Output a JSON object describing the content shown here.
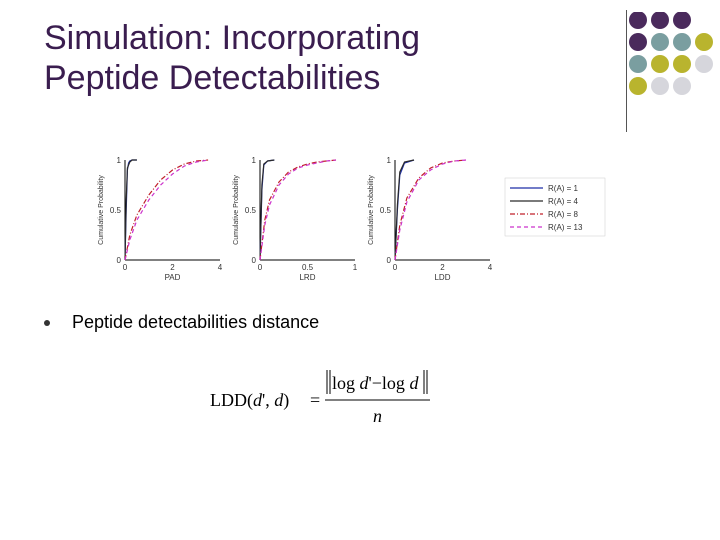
{
  "slide": {
    "title_line1": "Simulation: Incorporating",
    "title_line2": "Peptide Detectabilities",
    "bullet": "Peptide detectabilities distance"
  },
  "colors": {
    "title": "#3a1d4f",
    "purple": "#4a2a5c",
    "teal": "#7a9ea0",
    "olive": "#b9b42e",
    "lightgray": "#d6d6dc"
  },
  "dot_grid": [
    [
      "purple",
      "purple",
      "purple",
      "none"
    ],
    [
      "purple",
      "teal",
      "teal",
      "olive"
    ],
    [
      "teal",
      "olive",
      "olive",
      "lightgray"
    ],
    [
      "olive",
      "lightgray",
      "lightgray",
      "none"
    ]
  ],
  "formula": {
    "lhs": "LDD(",
    "arg1": "d",
    "prime": "'",
    "comma": ", ",
    "arg2": "d",
    "close": ")",
    "equals": "=",
    "num_log1": "log ",
    "num_d1": "d",
    "num_prime": "'",
    "num_minus": "−",
    "num_log2": "log ",
    "num_d2": "d",
    "den": "n"
  },
  "chart_data": [
    {
      "type": "line",
      "xlabel": "PAD",
      "ylabel": "Cumulative Probability",
      "xlim": [
        0,
        4
      ],
      "ylim": [
        0,
        1
      ],
      "x_ticks": [
        "0",
        "2",
        "4"
      ],
      "y_ticks": [
        "0",
        "0.5",
        "1"
      ],
      "series": [
        {
          "name": "R(A) = 1",
          "x": [
            0,
            0.05,
            0.1,
            0.15,
            0.2,
            0.3,
            0.5
          ],
          "y": [
            0,
            0.5,
            0.9,
            0.97,
            0.99,
            1,
            1
          ]
        },
        {
          "name": "R(A) = 4",
          "x": [
            0,
            0.05,
            0.1,
            0.2,
            0.3,
            0.5
          ],
          "y": [
            0,
            0.6,
            0.92,
            0.98,
            1,
            1
          ]
        },
        {
          "name": "R(A) = 8",
          "x": [
            0,
            0.2,
            0.5,
            1,
            1.5,
            2,
            2.5,
            3,
            3.5
          ],
          "y": [
            0,
            0.25,
            0.45,
            0.65,
            0.8,
            0.9,
            0.96,
            0.99,
            1
          ]
        },
        {
          "name": "R(A) = 13",
          "x": [
            0,
            0.2,
            0.5,
            1,
            1.5,
            2,
            2.5,
            3,
            3.5
          ],
          "y": [
            0,
            0.2,
            0.4,
            0.6,
            0.75,
            0.86,
            0.94,
            0.98,
            1
          ]
        }
      ]
    },
    {
      "type": "line",
      "xlabel": "LRD",
      "ylabel": "Cumulative Probability",
      "xlim": [
        0,
        1
      ],
      "ylim": [
        0,
        1
      ],
      "x_ticks": [
        "0",
        "0.5",
        "1"
      ],
      "y_ticks": [
        "0",
        "0.5",
        "1"
      ],
      "series": [
        {
          "name": "R(A) = 1",
          "x": [
            0,
            0.02,
            0.04,
            0.08,
            0.15
          ],
          "y": [
            0,
            0.7,
            0.95,
            0.99,
            1
          ]
        },
        {
          "name": "R(A) = 4",
          "x": [
            0,
            0.02,
            0.04,
            0.08,
            0.15
          ],
          "y": [
            0,
            0.75,
            0.96,
            0.99,
            1
          ]
        },
        {
          "name": "R(A) = 8",
          "x": [
            0,
            0.05,
            0.1,
            0.2,
            0.3,
            0.4,
            0.5,
            0.6,
            0.7,
            0.8
          ],
          "y": [
            0,
            0.4,
            0.6,
            0.78,
            0.88,
            0.93,
            0.96,
            0.98,
            0.99,
            1
          ]
        },
        {
          "name": "R(A) = 13",
          "x": [
            0,
            0.05,
            0.1,
            0.2,
            0.3,
            0.4,
            0.5,
            0.6,
            0.7,
            0.8
          ],
          "y": [
            0,
            0.35,
            0.55,
            0.75,
            0.86,
            0.92,
            0.95,
            0.97,
            0.99,
            1
          ]
        }
      ]
    },
    {
      "type": "line",
      "xlabel": "LDD",
      "ylabel": "Cumulative Probability",
      "xlim": [
        0,
        4
      ],
      "ylim": [
        0,
        1
      ],
      "x_ticks": [
        "0",
        "2",
        "4"
      ],
      "y_ticks": [
        "0",
        "0.5",
        "1"
      ],
      "series": [
        {
          "name": "R(A) = 1",
          "x": [
            0,
            0.1,
            0.2,
            0.4,
            0.8
          ],
          "y": [
            0,
            0.5,
            0.85,
            0.97,
            1
          ]
        },
        {
          "name": "R(A) = 4",
          "x": [
            0,
            0.1,
            0.2,
            0.4,
            0.8
          ],
          "y": [
            0,
            0.55,
            0.88,
            0.98,
            1
          ]
        },
        {
          "name": "R(A) = 8",
          "x": [
            0,
            0.2,
            0.5,
            1,
            1.5,
            2,
            2.5,
            3
          ],
          "y": [
            0,
            0.35,
            0.62,
            0.82,
            0.92,
            0.97,
            0.99,
            1
          ]
        },
        {
          "name": "R(A) = 13",
          "x": [
            0,
            0.2,
            0.5,
            1,
            1.5,
            2,
            2.5,
            3
          ],
          "y": [
            0,
            0.3,
            0.58,
            0.8,
            0.9,
            0.96,
            0.99,
            1
          ]
        }
      ]
    }
  ],
  "legend": {
    "placement": "right",
    "entries": [
      {
        "label": "R(A) = 1",
        "color": "#1f2fa8",
        "dash": "solid"
      },
      {
        "label": "R(A) = 4",
        "color": "#2a2a2a",
        "dash": "solid"
      },
      {
        "label": "R(A) = 8",
        "color": "#c0202a",
        "dash": "dashdot"
      },
      {
        "label": "R(A) = 13",
        "color": "#cc33cc",
        "dash": "dashed"
      }
    ]
  }
}
